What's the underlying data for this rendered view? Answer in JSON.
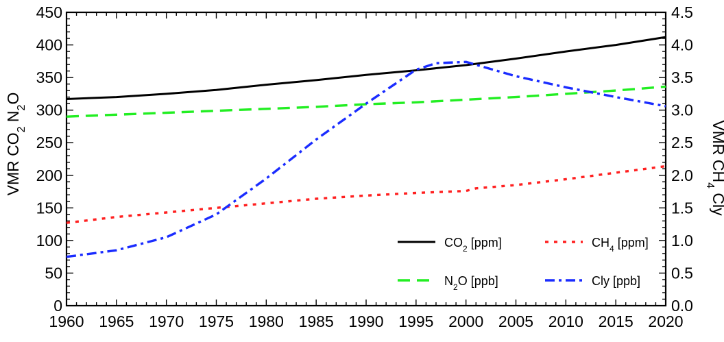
{
  "chart_data": {
    "type": "line",
    "x": [
      1960,
      1965,
      1970,
      1975,
      1980,
      1985,
      1990,
      1995,
      2000,
      2005,
      2010,
      2015,
      2020
    ],
    "xlim": [
      1960,
      2020
    ],
    "xticks": [
      1960,
      1965,
      1970,
      1975,
      1980,
      1985,
      1990,
      1995,
      2000,
      2005,
      2010,
      2015,
      2020
    ],
    "y_left": {
      "label_parts": [
        "VMR CO",
        "2",
        " N",
        "2",
        "O"
      ],
      "lim": [
        0,
        450
      ],
      "ticks": [
        0,
        50,
        100,
        150,
        200,
        250,
        300,
        350,
        400,
        450
      ]
    },
    "y_right": {
      "label_parts": [
        "VMR CH",
        "4",
        " Cly"
      ],
      "lim": [
        0,
        4.5
      ],
      "ticks": [
        "0.0",
        "0.5",
        "1.0",
        "1.5",
        "2.0",
        "2.5",
        "3.0",
        "3.5",
        "4.0",
        "4.5"
      ]
    },
    "series": [
      {
        "label_parts": [
          "CO",
          "2",
          " [ppm]"
        ],
        "axis": "left",
        "color": "#000000",
        "dash": "solid",
        "x": [
          1960,
          1965,
          1970,
          1975,
          1980,
          1985,
          1990,
          1995,
          2000,
          2005,
          2010,
          2015,
          2020
        ],
        "values": [
          317,
          320,
          325,
          331,
          339,
          346,
          354,
          361,
          369,
          379,
          390,
          400,
          412
        ]
      },
      {
        "label_parts": [
          "CH",
          "4",
          " [ppm]"
        ],
        "axis": "right",
        "color": "#ff2020",
        "dash": "dotted",
        "x": [
          1960,
          1965,
          1970,
          1975,
          1980,
          1985,
          1990,
          1995,
          2000,
          2001,
          2005,
          2010,
          2015,
          2020
        ],
        "values": [
          1.27,
          1.36,
          1.43,
          1.5,
          1.57,
          1.64,
          1.69,
          1.73,
          1.76,
          1.8,
          1.85,
          1.94,
          2.04,
          2.14
        ]
      },
      {
        "label_parts": [
          "N",
          "2",
          "O [ppb]"
        ],
        "axis": "left",
        "color": "#22ee22",
        "dash": "dashed",
        "x": [
          1960,
          1965,
          1970,
          1975,
          1980,
          1985,
          1990,
          1995,
          2000,
          2005,
          2010,
          2015,
          2020
        ],
        "values": [
          290,
          293,
          296,
          299,
          302,
          305,
          309,
          312,
          316,
          320,
          325,
          330,
          336
        ]
      },
      {
        "label_parts": [
          "Cly [ppb]"
        ],
        "axis": "right",
        "color": "#1a2cff",
        "dash": "dashdot",
        "x": [
          1960,
          1965,
          1970,
          1975,
          1980,
          1985,
          1990,
          1995,
          1997,
          2000,
          2005,
          2010,
          2015,
          2020
        ],
        "values": [
          0.75,
          0.85,
          1.05,
          1.4,
          1.95,
          2.55,
          3.1,
          3.62,
          3.72,
          3.74,
          3.52,
          3.35,
          3.2,
          3.06
        ]
      }
    ],
    "legend_placement": "bottom-right",
    "grid": false
  }
}
